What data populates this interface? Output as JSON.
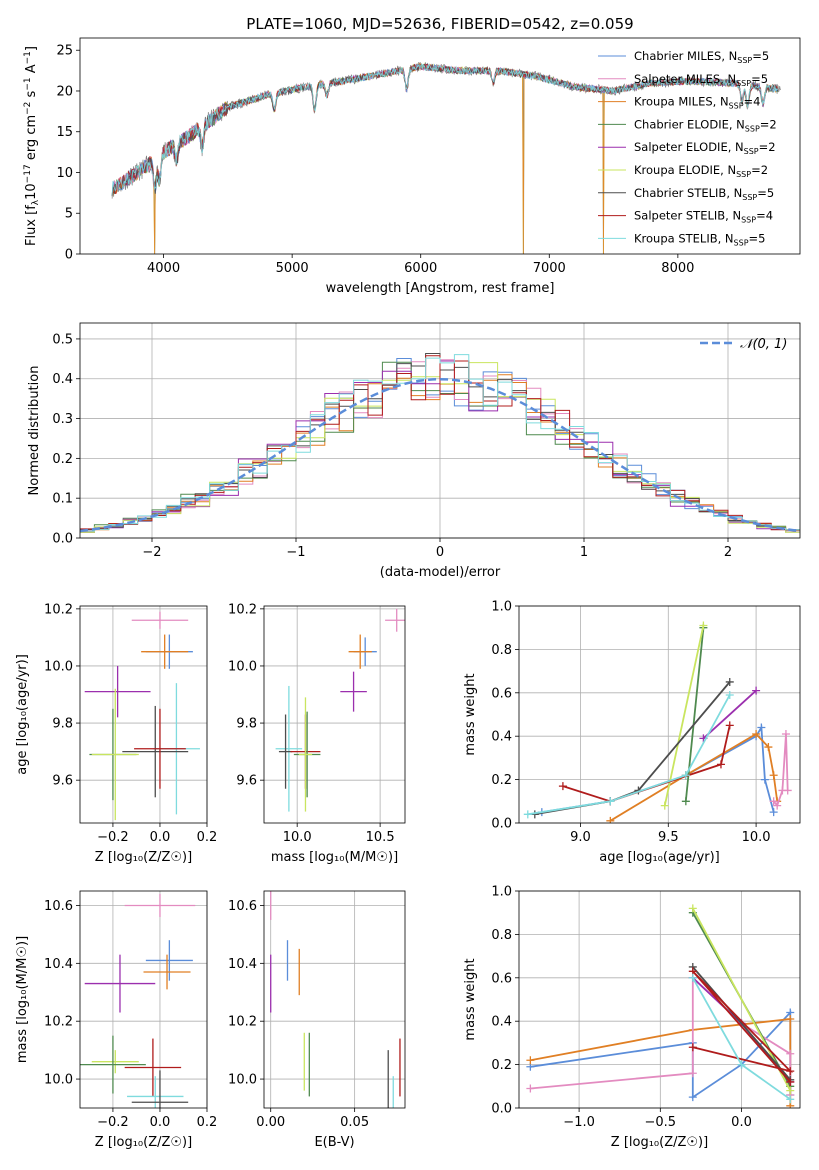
{
  "title": "PLATE=1060, MJD=52636, FIBERID=0542, z=0.059",
  "colors": {
    "chabrier_miles": "#5b8dd9",
    "salpeter_miles": "#e38bc0",
    "kroupa_miles": "#e07f24",
    "chabrier_elodie": "#4f8a4f",
    "salpeter_elodie": "#9b2fae",
    "kroupa_elodie": "#c9e55f",
    "chabrier_stelib": "#4d4d4d",
    "salpeter_stelib": "#b01c1c",
    "kroupa_stelib": "#7fdbde",
    "data": "#808080",
    "normal": "#5b8dd9"
  },
  "chart_data": [
    {
      "id": "spectrum",
      "type": "line",
      "xlabel": "wavelength [Angstrom, rest frame]",
      "ylabel_parts": [
        "Flux [f",
        "λ",
        "10",
        "−17",
        " erg cm",
        "−2",
        " s",
        "−1",
        " A",
        "−1",
        "]"
      ],
      "xlim": [
        3350,
        8950
      ],
      "ylim": [
        0,
        26.5
      ],
      "xticks": [
        4000,
        5000,
        6000,
        7000,
        8000
      ],
      "yticks": [
        0,
        5,
        10,
        15,
        20,
        25
      ],
      "legend_position": "right",
      "legend": [
        {
          "key": "chabrier_miles",
          "base": "Chabrier MILES, N",
          "sub": "SSP",
          "n": "=5"
        },
        {
          "key": "salpeter_miles",
          "base": "Salpeter MILES, N",
          "sub": "SSP",
          "n": "=5"
        },
        {
          "key": "kroupa_miles",
          "base": "Kroupa MILES, N",
          "sub": "SSP",
          "n": "=4"
        },
        {
          "key": "chabrier_elodie",
          "base": "Chabrier ELODIE, N",
          "sub": "SSP",
          "n": "=2"
        },
        {
          "key": "salpeter_elodie",
          "base": "Salpeter ELODIE, N",
          "sub": "SSP",
          "n": "=2"
        },
        {
          "key": "kroupa_elodie",
          "base": "Kroupa ELODIE, N",
          "sub": "SSP",
          "n": "=2"
        },
        {
          "key": "chabrier_stelib",
          "base": "Chabrier STELIB, N",
          "sub": "SSP",
          "n": "=5"
        },
        {
          "key": "salpeter_stelib",
          "base": "Salpeter STELIB, N",
          "sub": "SSP",
          "n": "=4"
        },
        {
          "key": "kroupa_stelib",
          "base": "Kroupa STELIB, N",
          "sub": "SSP",
          "n": "=5"
        }
      ],
      "continuum_knots": [
        [
          3600,
          8.0
        ],
        [
          3800,
          10.0
        ],
        [
          4000,
          12.5
        ],
        [
          4200,
          14.5
        ],
        [
          4500,
          18.0
        ],
        [
          4800,
          19.5
        ],
        [
          5100,
          20.5
        ],
        [
          5500,
          21.5
        ],
        [
          6000,
          23.0
        ],
        [
          6300,
          22.5
        ],
        [
          6600,
          22.5
        ],
        [
          6900,
          21.8
        ],
        [
          7200,
          20.5
        ],
        [
          7500,
          20.0
        ],
        [
          7800,
          21.0
        ],
        [
          8100,
          21.2
        ],
        [
          8400,
          21.0
        ],
        [
          8800,
          20.2
        ]
      ],
      "absorption_features": [
        [
          3933,
          3.5
        ],
        [
          3968,
          3.0
        ],
        [
          4102,
          2.0
        ],
        [
          4300,
          2.5
        ],
        [
          4861,
          2.0
        ],
        [
          5175,
          3.0
        ],
        [
          5270,
          1.5
        ],
        [
          5890,
          2.5
        ],
        [
          6563,
          1.5
        ],
        [
          8498,
          2.0
        ],
        [
          8542,
          2.5
        ],
        [
          8662,
          2.0
        ]
      ],
      "data_gaps": [
        3932,
        6800,
        7420
      ]
    },
    {
      "id": "residual_hist",
      "type": "histogram",
      "xlabel": "(data-model)/error",
      "ylabel": "Normed distribution",
      "xlim": [
        -2.5,
        2.5
      ],
      "ylim": [
        0,
        0.54
      ],
      "xticks": [
        -2,
        -1,
        0,
        1,
        2
      ],
      "yticks": [
        0.0,
        0.1,
        0.2,
        0.3,
        0.4,
        0.5
      ],
      "legend_position": "top-right",
      "legend_label": "𝒩(0, 1)",
      "bin_width": 0.1
    },
    {
      "id": "age_vs_Z",
      "type": "scatter",
      "xlabel": "Z [log₁₀(Z/Z☉)]",
      "ylabel": "age  [log₁₀(age/yr)]",
      "xlim": [
        -0.34,
        0.2
      ],
      "ylim": [
        9.45,
        10.21
      ],
      "xticks": [
        -0.2,
        0.0,
        0.2
      ],
      "yticks": [
        9.6,
        9.8,
        10.0,
        10.2
      ],
      "points": [
        {
          "key": "salpeter_miles",
          "x": 0.0,
          "y": 10.16,
          "xerr": 0.12,
          "yerr": 0.03
        },
        {
          "key": "chabrier_miles",
          "x": 0.04,
          "y": 10.05,
          "xerr": 0.1,
          "yerr": 0.06
        },
        {
          "key": "kroupa_miles",
          "x": 0.02,
          "y": 10.05,
          "xerr": 0.1,
          "yerr": 0.06
        },
        {
          "key": "salpeter_elodie",
          "x": -0.18,
          "y": 9.91,
          "xerr": 0.14,
          "yerr": 0.09
        },
        {
          "key": "kroupa_stelib",
          "x": 0.07,
          "y": 9.71,
          "xerr": 0.1,
          "yerr": 0.23
        },
        {
          "key": "chabrier_stelib",
          "x": -0.02,
          "y": 9.7,
          "xerr": 0.14,
          "yerr": 0.16
        },
        {
          "key": "salpeter_stelib",
          "x": 0.0,
          "y": 9.71,
          "xerr": 0.11,
          "yerr": 0.14
        },
        {
          "key": "chabrier_elodie",
          "x": -0.2,
          "y": 9.69,
          "xerr": 0.1,
          "yerr": 0.16
        },
        {
          "key": "kroupa_elodie",
          "x": -0.19,
          "y": 9.69,
          "xerr": 0.1,
          "yerr": 0.23
        }
      ]
    },
    {
      "id": "age_vs_mass",
      "type": "scatter",
      "xlabel": "mass [log₁₀(M/M☉)]",
      "ylabel": "",
      "xlim": [
        9.8,
        10.65
      ],
      "ylim": [
        9.45,
        10.21
      ],
      "xticks": [
        10.0,
        10.5
      ],
      "yticks": [
        9.6,
        9.8,
        10.0,
        10.2
      ],
      "points": [
        {
          "key": "salpeter_miles",
          "x": 10.6,
          "y": 10.16,
          "xerr": 0.07,
          "yerr": 0.04
        },
        {
          "key": "chabrier_miles",
          "x": 10.41,
          "y": 10.05,
          "xerr": 0.07,
          "yerr": 0.05
        },
        {
          "key": "kroupa_miles",
          "x": 10.38,
          "y": 10.05,
          "xerr": 0.07,
          "yerr": 0.06
        },
        {
          "key": "salpeter_elodie",
          "x": 10.34,
          "y": 9.91,
          "xerr": 0.08,
          "yerr": 0.07
        },
        {
          "key": "kroupa_stelib",
          "x": 9.95,
          "y": 9.71,
          "xerr": 0.08,
          "yerr": 0.22
        },
        {
          "key": "chabrier_stelib",
          "x": 9.93,
          "y": 9.7,
          "xerr": 0.04,
          "yerr": 0.13
        },
        {
          "key": "salpeter_stelib",
          "x": 10.05,
          "y": 9.7,
          "xerr": 0.09,
          "yerr": 0.13
        },
        {
          "key": "chabrier_elodie",
          "x": 10.06,
          "y": 9.69,
          "xerr": 0.08,
          "yerr": 0.15
        },
        {
          "key": "kroupa_elodie",
          "x": 10.05,
          "y": 9.69,
          "xerr": 0.04,
          "yerr": 0.2
        }
      ]
    },
    {
      "id": "weight_vs_age",
      "type": "line",
      "xlabel": "age  [log₁₀(age/yr)]",
      "ylabel": "mass weight",
      "xlim": [
        8.65,
        10.25
      ],
      "ylim": [
        0,
        1
      ],
      "xticks": [
        9.0,
        9.5,
        10.0
      ],
      "yticks": [
        0.0,
        0.2,
        0.4,
        0.6,
        0.8,
        1.0
      ],
      "series": [
        {
          "key": "chabrier_miles",
          "points": [
            [
              8.78,
              0.05
            ],
            [
              9.17,
              0.1
            ],
            [
              9.6,
              0.22
            ],
            [
              10.0,
              0.4
            ],
            [
              10.03,
              0.44
            ],
            [
              10.05,
              0.2
            ],
            [
              10.1,
              0.05
            ]
          ]
        },
        {
          "key": "kroupa_miles",
          "points": [
            [
              9.17,
              0.01
            ],
            [
              9.6,
              0.22
            ],
            [
              10.0,
              0.41
            ],
            [
              10.07,
              0.35
            ],
            [
              10.1,
              0.22
            ],
            [
              10.12,
              0.1
            ]
          ]
        },
        {
          "key": "salpeter_miles",
          "points": [
            [
              10.1,
              0.1
            ],
            [
              10.12,
              0.08
            ],
            [
              10.15,
              0.15
            ],
            [
              10.17,
              0.41
            ],
            [
              10.18,
              0.15
            ]
          ]
        },
        {
          "key": "chabrier_elodie",
          "points": [
            [
              9.6,
              0.1
            ],
            [
              9.7,
              0.9
            ]
          ]
        },
        {
          "key": "kroupa_elodie",
          "points": [
            [
              9.48,
              0.08
            ],
            [
              9.7,
              0.91
            ]
          ]
        },
        {
          "key": "salpeter_elodie",
          "points": [
            [
              9.7,
              0.39
            ],
            [
              10.0,
              0.61
            ]
          ]
        },
        {
          "key": "chabrier_stelib",
          "points": [
            [
              8.74,
              0.04
            ],
            [
              9.17,
              0.1
            ],
            [
              9.33,
              0.15
            ],
            [
              9.85,
              0.65
            ]
          ]
        },
        {
          "key": "salpeter_stelib",
          "points": [
            [
              8.9,
              0.17
            ],
            [
              9.17,
              0.1
            ],
            [
              9.8,
              0.27
            ],
            [
              9.85,
              0.45
            ]
          ]
        },
        {
          "key": "kroupa_stelib",
          "points": [
            [
              8.7,
              0.04
            ],
            [
              9.17,
              0.1
            ],
            [
              9.6,
              0.22
            ],
            [
              9.85,
              0.59
            ]
          ]
        }
      ]
    },
    {
      "id": "mass_vs_Z",
      "type": "scatter",
      "xlabel": "Z [log₁₀(Z/Z☉)]",
      "ylabel": "mass [log₁₀(M/M☉)]",
      "xlim": [
        -0.34,
        0.2
      ],
      "ylim": [
        9.9,
        10.65
      ],
      "xticks": [
        -0.2,
        0.0,
        0.2
      ],
      "yticks": [
        10.0,
        10.2,
        10.4,
        10.6
      ],
      "points": [
        {
          "key": "salpeter_miles",
          "x": 0.0,
          "y": 10.6,
          "xerr": 0.15,
          "yerr": 0.04
        },
        {
          "key": "chabrier_miles",
          "x": 0.04,
          "y": 10.41,
          "xerr": 0.1,
          "yerr": 0.07
        },
        {
          "key": "kroupa_miles",
          "x": 0.03,
          "y": 10.37,
          "xerr": 0.1,
          "yerr": 0.06
        },
        {
          "key": "salpeter_elodie",
          "x": -0.17,
          "y": 10.33,
          "xerr": 0.15,
          "yerr": 0.1
        },
        {
          "key": "kroupa_elodie",
          "x": -0.19,
          "y": 10.06,
          "xerr": 0.1,
          "yerr": 0.04
        },
        {
          "key": "chabrier_elodie",
          "x": -0.2,
          "y": 10.05,
          "xerr": 0.14,
          "yerr": 0.1
        },
        {
          "key": "salpeter_stelib",
          "x": -0.03,
          "y": 10.04,
          "xerr": 0.12,
          "yerr": 0.1
        },
        {
          "key": "kroupa_stelib",
          "x": -0.02,
          "y": 9.94,
          "xerr": 0.12,
          "yerr": 0.07
        },
        {
          "key": "chabrier_stelib",
          "x": 0.0,
          "y": 9.92,
          "xerr": 0.12,
          "yerr": 0.11
        }
      ]
    },
    {
      "id": "mass_vs_ebv",
      "type": "scatter",
      "xlabel": "E(B-V)",
      "ylabel": "",
      "xlim": [
        -0.004,
        0.08
      ],
      "ylim": [
        9.9,
        10.65
      ],
      "xticks": [
        0.0,
        0.05
      ],
      "yticks": [
        10.0,
        10.2,
        10.4,
        10.6
      ],
      "points": [
        {
          "key": "salpeter_miles",
          "x": 0.0,
          "y": 10.6,
          "xerr": 0,
          "yerr": 0.05
        },
        {
          "key": "salpeter_elodie",
          "x": 0.0,
          "y": 10.33,
          "xerr": 0,
          "yerr": 0.1
        },
        {
          "key": "chabrier_miles",
          "x": 0.01,
          "y": 10.41,
          "xerr": 0,
          "yerr": 0.07
        },
        {
          "key": "kroupa_miles",
          "x": 0.017,
          "y": 10.37,
          "xerr": 0,
          "yerr": 0.08
        },
        {
          "key": "kroupa_elodie",
          "x": 0.02,
          "y": 10.06,
          "xerr": 0,
          "yerr": 0.1
        },
        {
          "key": "chabrier_elodie",
          "x": 0.023,
          "y": 10.05,
          "xerr": 0,
          "yerr": 0.11
        },
        {
          "key": "chabrier_stelib",
          "x": 0.07,
          "y": 9.97,
          "xerr": 0,
          "yerr": 0.13
        },
        {
          "key": "kroupa_stelib",
          "x": 0.073,
          "y": 9.94,
          "xerr": 0,
          "yerr": 0.07
        },
        {
          "key": "salpeter_stelib",
          "x": 0.077,
          "y": 10.04,
          "xerr": 0,
          "yerr": 0.1
        }
      ]
    },
    {
      "id": "weight_vs_Z",
      "type": "line",
      "xlabel": "Z [log₁₀(Z/Z☉)]",
      "ylabel": "mass weight",
      "xlim": [
        -1.37,
        0.36
      ],
      "ylim": [
        0,
        1
      ],
      "xticks": [
        -1.0,
        -0.5,
        0.0
      ],
      "yticks": [
        0.0,
        0.2,
        0.4,
        0.6,
        0.8,
        1.0
      ],
      "series": [
        {
          "key": "chabrier_miles",
          "points": [
            [
              -1.3,
              0.19
            ],
            [
              -0.3,
              0.3
            ],
            [
              -0.3,
              0.05
            ],
            [
              0.0,
              0.2
            ],
            [
              0.3,
              0.44
            ],
            [
              0.3,
              0.06
            ]
          ]
        },
        {
          "key": "kroupa_miles",
          "points": [
            [
              -1.3,
              0.22
            ],
            [
              -0.3,
              0.36
            ],
            [
              0.3,
              0.41
            ],
            [
              0.3,
              0.01
            ]
          ]
        },
        {
          "key": "salpeter_miles",
          "points": [
            [
              -1.3,
              0.09
            ],
            [
              -0.3,
              0.16
            ],
            [
              -0.3,
              0.6
            ],
            [
              0.0,
              0.39
            ],
            [
              0.3,
              0.25
            ],
            [
              0.3,
              0.06
            ]
          ]
        },
        {
          "key": "chabrier_elodie",
          "points": [
            [
              -0.3,
              0.9
            ],
            [
              0.3,
              0.1
            ]
          ]
        },
        {
          "key": "kroupa_elodie",
          "points": [
            [
              -0.3,
              0.92
            ],
            [
              0.3,
              0.08
            ]
          ]
        },
        {
          "key": "salpeter_elodie",
          "points": [
            [
              -0.3,
              0.6
            ],
            [
              0.0,
              0.39
            ],
            [
              0.3,
              0.12
            ]
          ]
        },
        {
          "key": "chabrier_stelib",
          "points": [
            [
              -0.3,
              0.65
            ],
            [
              0.3,
              0.13
            ]
          ]
        },
        {
          "key": "salpeter_stelib",
          "points": [
            [
              -0.3,
              0.28
            ],
            [
              0.3,
              0.17
            ],
            [
              -0.3,
              0.63
            ],
            [
              0.3,
              0.12
            ]
          ]
        },
        {
          "key": "kroupa_stelib",
          "points": [
            [
              -0.3,
              0.6
            ],
            [
              0.0,
              0.2
            ],
            [
              0.3,
              0.04
            ]
          ]
        }
      ]
    }
  ]
}
